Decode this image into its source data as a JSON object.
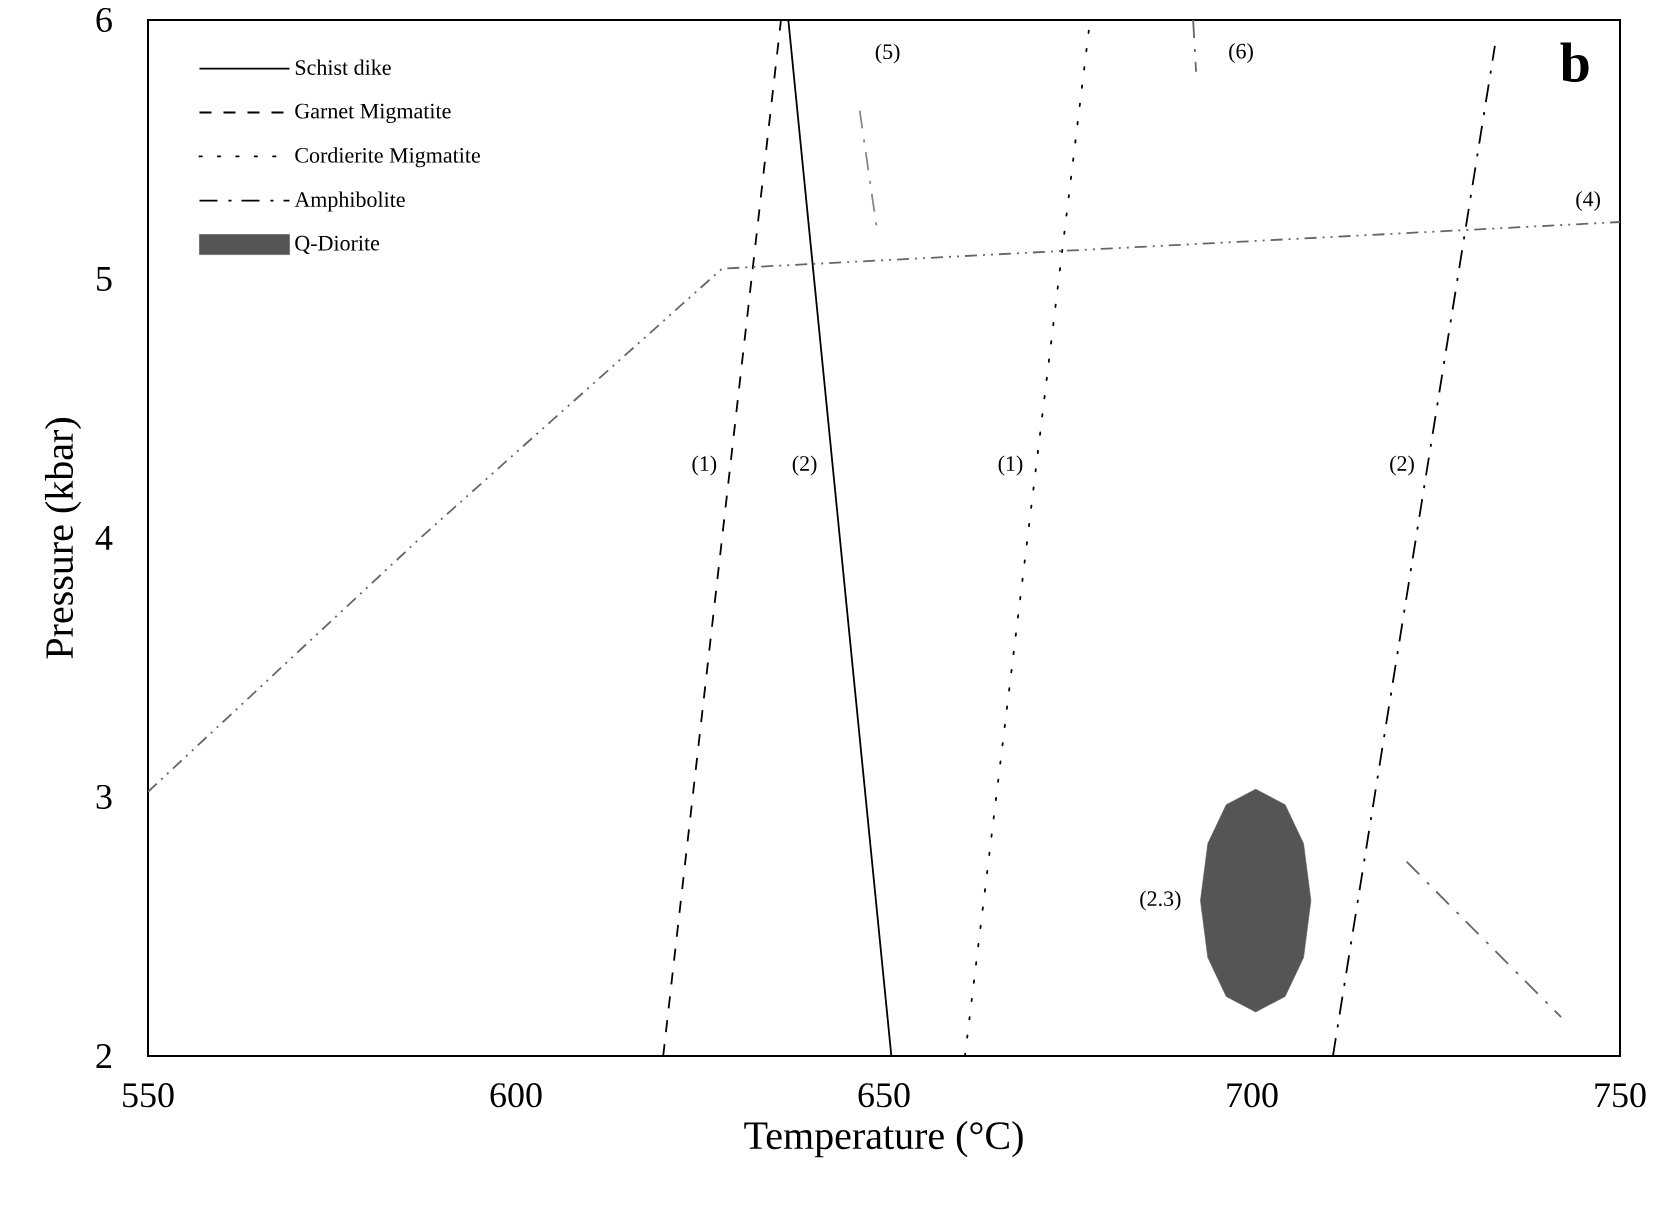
{
  "chart_data": {
    "type": "line",
    "xlabel": "Temperature (°C)",
    "ylabel": "Pressure (kbar)",
    "xlim": [
      550,
      750
    ],
    "ylim": [
      2,
      6
    ],
    "xticks": [
      550,
      600,
      650,
      700,
      750
    ],
    "yticks": [
      2,
      3,
      4,
      5,
      6
    ],
    "grid": false,
    "legend": "top left",
    "marker": "none",
    "series": [
      {
        "name": "Schist dike",
        "color": "#000000",
        "line_style": "solid",
        "x": [
          637,
          651
        ],
        "values": [
          6,
          2
        ]
      },
      {
        "name": "Garnet Migmatite",
        "color": "#000000",
        "line_style": "dashed",
        "x": [
          620,
          636
        ],
        "values": [
          2,
          6
        ]
      },
      {
        "name": "Cordierite Migmatite",
        "color": "#000000",
        "line_style": "dotted",
        "x": [
          661,
          678
        ],
        "values": [
          2,
          6
        ]
      },
      {
        "name": "Amphibolite",
        "color": "#000000",
        "line_style": "dashdot",
        "x": [
          711,
          733
        ],
        "values": [
          2,
          5.9
        ]
      },
      {
        "name": "Q-Diorite",
        "type": "area",
        "color": "#555555",
        "x": [
          708,
          707,
          704.5,
          700.5,
          696.5,
          694,
          693,
          694,
          696.5,
          700.5,
          704.5,
          707
        ],
        "values": [
          2.6,
          2.82,
          2.97,
          3.03,
          2.97,
          2.82,
          2.6,
          2.38,
          2.23,
          2.17,
          2.23,
          2.38
        ]
      },
      {
        "color": "#666666",
        "line_style": "dashdotdot",
        "x": [
          550,
          587,
          628,
          750
        ],
        "values": [
          3.02,
          4.0,
          5.04,
          5.22
        ]
      },
      {
        "color": "#888888",
        "line_style": "dashdot",
        "x": [
          646.7,
          649
        ],
        "values": [
          5.65,
          5.2
        ]
      },
      {
        "color": "#666666",
        "line_style": "dashdot",
        "x": [
          692,
          692.4
        ],
        "values": [
          6,
          5.8
        ]
      },
      {
        "color": "#666666",
        "line_style": "dashdot",
        "x": [
          721,
          742
        ],
        "values": [
          2.75,
          2.15
        ]
      }
    ],
    "annotations": [
      {
        "text": "(1)",
        "x": 629.1,
        "y": 4.28
      },
      {
        "text": "(2)",
        "x": 643,
        "y": 4.28
      },
      {
        "text": "(1)",
        "x": 670.7,
        "y": 4.28
      },
      {
        "text": "(2)",
        "x": 723.9,
        "y": 4.28
      },
      {
        "text": "(2.3)",
        "x": 693,
        "y": 2.6
      },
      {
        "text": "(4)",
        "x": 750,
        "y": 5.22
      },
      {
        "text": "(5)",
        "x": 646.7,
        "y": 5.65
      },
      {
        "text": "(6)",
        "x": 692,
        "y": 6
      },
      "b"
    ]
  }
}
